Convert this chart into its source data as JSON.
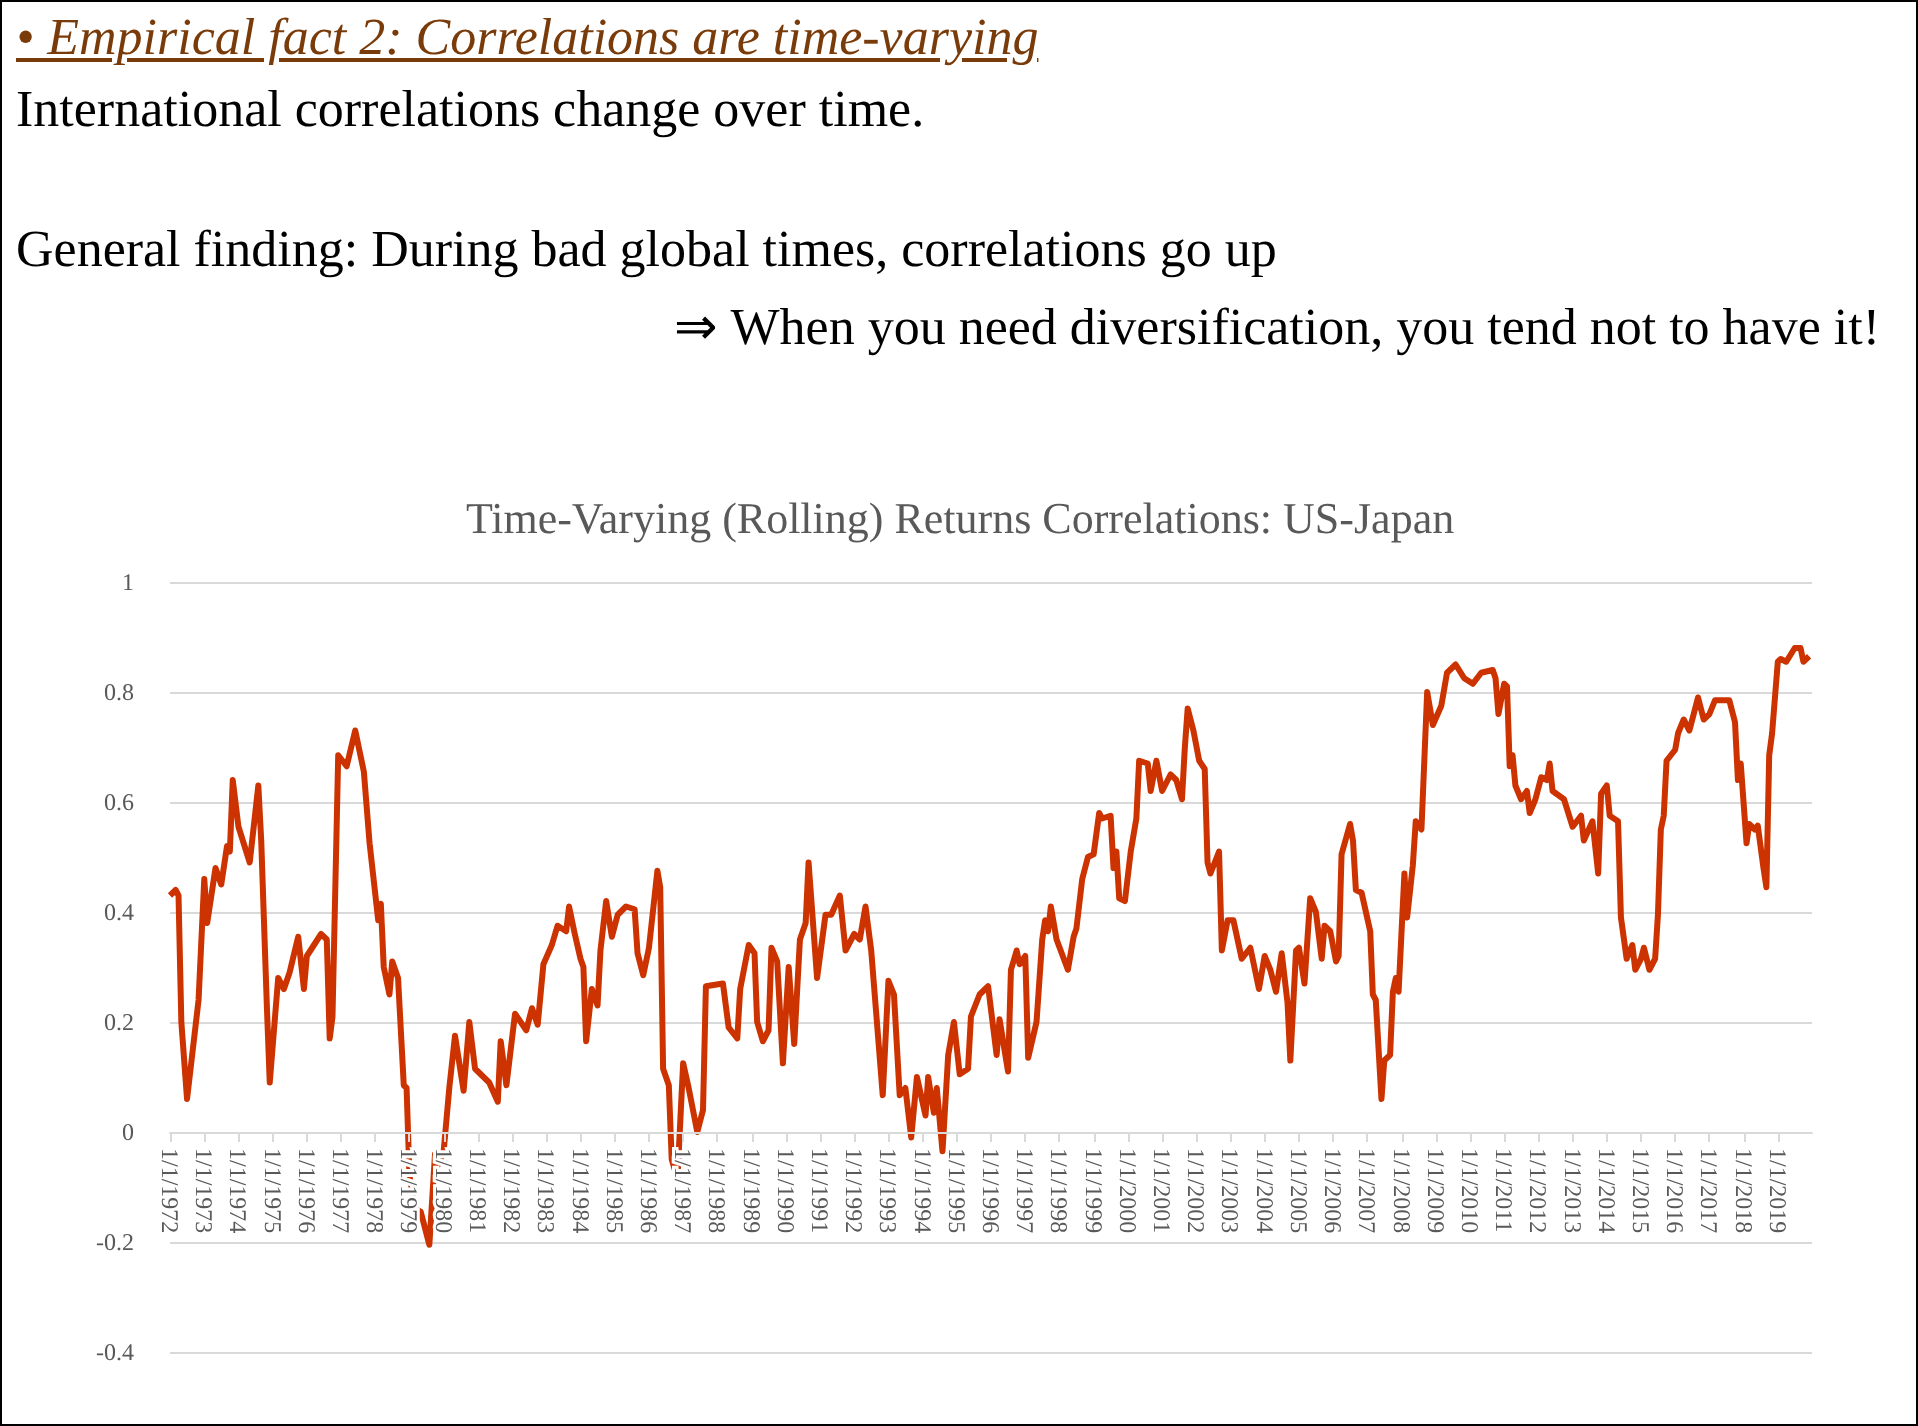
{
  "chart_data": {
    "type": "line",
    "title": "Time-Varying (Rolling) Returns Correlations: US-Japan",
    "annotations": [
      "• Empirical fact 2: Correlations are time-varying",
      "International correlations change over time.",
      "General finding: During bad global times, correlations go up",
      "⇒ When you need diversification, you tend not to have it!"
    ],
    "x": [
      "1972-01",
      "1972-03",
      "1972-04",
      "1972-05",
      "1972-07",
      "1972-11",
      "1973-01",
      "1973-02",
      "1973-05",
      "1973-07",
      "1973-09",
      "1973-10",
      "1973-11",
      "1974-01",
      "1974-05",
      "1974-08",
      "1974-09",
      "1974-11",
      "1974-12",
      "1975-03",
      "1975-05",
      "1975-07",
      "1975-10",
      "1975-12",
      "1976-01",
      "1976-06",
      "1976-08",
      "1976-09",
      "1976-10",
      "1976-12",
      "1977-03",
      "1977-06",
      "1977-09",
      "1977-11",
      "1978-02",
      "1978-03",
      "1978-04",
      "1978-06",
      "1978-07",
      "1978-09",
      "1978-11",
      "1978-12",
      "1979-01",
      "1979-03",
      "1979-05",
      "1979-08",
      "1979-10",
      "1979-11",
      "1980-01",
      "1980-03",
      "1980-05",
      "1980-08",
      "1980-10",
      "1980-12",
      "1981-05",
      "1981-08",
      "1981-09",
      "1981-11",
      "1982-02",
      "1982-06",
      "1982-08",
      "1982-10",
      "1982-12",
      "1983-03",
      "1983-05",
      "1983-08",
      "1983-09",
      "1983-11",
      "1984-01",
      "1984-02",
      "1984-03",
      "1984-05",
      "1984-07",
      "1984-08",
      "1984-10",
      "1984-12",
      "1985-02",
      "1985-05",
      "1985-08",
      "1985-09",
      "1985-11",
      "1986-01",
      "1986-04",
      "1986-05",
      "1986-06",
      "1986-08",
      "1986-09",
      "1986-11",
      "1987-01",
      "1987-03",
      "1987-06",
      "1987-08",
      "1987-09",
      "1988-03",
      "1988-05",
      "1988-08",
      "1988-09",
      "1988-12",
      "1989-02",
      "1989-03",
      "1989-05",
      "1989-07",
      "1989-08",
      "1989-10",
      "1989-12",
      "1990-02",
      "1990-04",
      "1990-06",
      "1990-08",
      "1990-09",
      "1990-12",
      "1991-03",
      "1991-05",
      "1991-08",
      "1991-10",
      "1992-01",
      "1992-03",
      "1992-05",
      "1992-07",
      "1992-11",
      "1993-01",
      "1993-03",
      "1993-05",
      "1993-07",
      "1993-09",
      "1993-11",
      "1994-02",
      "1994-03",
      "1994-05",
      "1994-06",
      "1994-08",
      "1994-10",
      "1994-12",
      "1995-02",
      "1995-05",
      "1995-06",
      "1995-09",
      "1995-12",
      "1996-03",
      "1996-04",
      "1996-07",
      "1996-08",
      "1996-10",
      "1996-11",
      "1997-01",
      "1997-02",
      "1997-05",
      "1997-07",
      "1997-08",
      "1997-09",
      "1997-10",
      "1997-12",
      "1998-04",
      "1998-06",
      "1998-07",
      "1998-09",
      "1998-11",
      "1999-01",
      "1999-03",
      "1999-04",
      "1999-07",
      "1999-08",
      "1999-09",
      "1999-10",
      "1999-12",
      "2000-02",
      "2000-04",
      "2000-05",
      "2000-08",
      "2000-09",
      "2000-11",
      "2001-01",
      "2001-04",
      "2001-06",
      "2001-08",
      "2001-09",
      "2001-10",
      "2001-12",
      "2002-02",
      "2002-04",
      "2002-05",
      "2002-06",
      "2002-09",
      "2002-10",
      "2002-12",
      "2003-02",
      "2003-05",
      "2003-08",
      "2003-11",
      "2004-01",
      "2004-03",
      "2004-05",
      "2004-07",
      "2004-09",
      "2004-10",
      "2004-12",
      "2005-01",
      "2005-03",
      "2005-05",
      "2005-07",
      "2005-09",
      "2005-10",
      "2005-12",
      "2006-02",
      "2006-03",
      "2006-04",
      "2006-07",
      "2006-08",
      "2006-09",
      "2006-11",
      "2007-02",
      "2007-03",
      "2007-04",
      "2007-06",
      "2007-07",
      "2007-09",
      "2007-10",
      "2007-11",
      "2007-12",
      "2008-02",
      "2008-03",
      "2008-05",
      "2008-06",
      "2008-08",
      "2008-10",
      "2008-12",
      "2009-03",
      "2009-05",
      "2009-08",
      "2009-11",
      "2010-02",
      "2010-05",
      "2010-09",
      "2010-10",
      "2010-11",
      "2011-01",
      "2011-02",
      "2011-03",
      "2011-04",
      "2011-05",
      "2011-07",
      "2011-09",
      "2011-10",
      "2011-12",
      "2012-02",
      "2012-04",
      "2012-05",
      "2012-06",
      "2012-10",
      "2013-01",
      "2013-04",
      "2013-05",
      "2013-08",
      "2013-10",
      "2013-11",
      "2014-01",
      "2014-02",
      "2014-05",
      "2014-06",
      "2014-08",
      "2014-10",
      "2014-11",
      "2015-01",
      "2015-02",
      "2015-04",
      "2015-06",
      "2015-07",
      "2015-08",
      "2015-09",
      "2015-10",
      "2016-01",
      "2016-02",
      "2016-04",
      "2016-06",
      "2016-09",
      "2016-11",
      "2017-01",
      "2017-03",
      "2017-06",
      "2017-08",
      "2017-10",
      "2017-11",
      "2017-12",
      "2018-02",
      "2018-03",
      "2018-05",
      "2018-06",
      "2018-08",
      "2018-09",
      "2018-10",
      "2018-11",
      "2019-01",
      "2019-02",
      "2019-04",
      "2019-07",
      "2019-09",
      "2019-10",
      "2019-12"
    ],
    "series": [
      {
        "color": "#cc3300",
        "values": [
          0.43,
          0.44,
          0.43,
          0.2,
          0.06,
          0.24,
          0.46,
          0.38,
          0.48,
          0.45,
          0.52,
          0.51,
          0.64,
          0.555,
          0.49,
          0.63,
          0.53,
          0.225,
          0.09,
          0.28,
          0.26,
          0.29,
          0.355,
          0.26,
          0.32,
          0.36,
          0.35,
          0.17,
          0.21,
          0.685,
          0.665,
          0.73,
          0.655,
          0.525,
          0.385,
          0.415,
          0.3,
          0.25,
          0.31,
          0.28,
          0.085,
          0.08,
          -0.08,
          -0.14,
          -0.145,
          -0.205,
          -0.04,
          -0.06,
          -0.035,
          0.08,
          0.175,
          0.075,
          0.2,
          0.115,
          0.09,
          0.055,
          0.165,
          0.085,
          0.215,
          0.185,
          0.225,
          0.195,
          0.305,
          0.34,
          0.375,
          0.365,
          0.41,
          0.36,
          0.315,
          0.3,
          0.165,
          0.26,
          0.23,
          0.33,
          0.42,
          0.355,
          0.395,
          0.41,
          0.405,
          0.325,
          0.285,
          0.335,
          0.475,
          0.445,
          0.115,
          0.085,
          -0.05,
          -0.085,
          0.125,
          0.08,
          0.0,
          0.04,
          0.265,
          0.27,
          0.19,
          0.17,
          0.26,
          0.34,
          0.325,
          0.2,
          0.165,
          0.185,
          0.335,
          0.31,
          0.125,
          0.3,
          0.16,
          0.35,
          0.38,
          0.49,
          0.28,
          0.395,
          0.395,
          0.43,
          0.33,
          0.36,
          0.35,
          0.41,
          0.33,
          0.067,
          0.275,
          0.25,
          0.067,
          0.08,
          -0.01,
          0.1,
          0.03,
          0.1,
          0.035,
          0.08,
          -0.035,
          0.14,
          0.2,
          0.105,
          0.115,
          0.21,
          0.25,
          0.265,
          0.14,
          0.205,
          0.11,
          0.295,
          0.33,
          0.305,
          0.32,
          0.135,
          0.2,
          0.35,
          0.385,
          0.365,
          0.41,
          0.35,
          0.295,
          0.355,
          0.37,
          0.46,
          0.5,
          0.505,
          0.58,
          0.57,
          0.575,
          0.48,
          0.51,
          0.425,
          0.42,
          0.51,
          0.57,
          0.675,
          0.67,
          0.62,
          0.675,
          0.62,
          0.65,
          0.64,
          0.605,
          0.7,
          0.77,
          0.73,
          0.675,
          0.66,
          0.49,
          0.47,
          0.51,
          0.33,
          0.385,
          0.385,
          0.315,
          0.335,
          0.26,
          0.32,
          0.295,
          0.255,
          0.325,
          0.235,
          0.13,
          0.33,
          0.335,
          0.27,
          0.425,
          0.4,
          0.315,
          0.375,
          0.365,
          0.31,
          0.32,
          0.505,
          0.56,
          0.53,
          0.44,
          0.435,
          0.365,
          0.25,
          0.24,
          0.06,
          0.13,
          0.14,
          0.255,
          0.28,
          0.255,
          0.47,
          0.39,
          0.485,
          0.565,
          0.55,
          0.8,
          0.74,
          0.775,
          0.835,
          0.85,
          0.825,
          0.815,
          0.835,
          0.84,
          0.825,
          0.76,
          0.815,
          0.81,
          0.665,
          0.685,
          0.63,
          0.605,
          0.62,
          0.58,
          0.605,
          0.645,
          0.64,
          0.67,
          0.62,
          0.605,
          0.555,
          0.575,
          0.53,
          0.565,
          0.47,
          0.615,
          0.63,
          0.575,
          0.565,
          0.39,
          0.315,
          0.34,
          0.295,
          0.315,
          0.335,
          0.295,
          0.315,
          0.395,
          0.55,
          0.575,
          0.675,
          0.695,
          0.725,
          0.75,
          0.73,
          0.79,
          0.75,
          0.76,
          0.785,
          0.785,
          0.785,
          0.745,
          0.64,
          0.67,
          0.525,
          0.56,
          0.55,
          0.557,
          0.48,
          0.445,
          0.685,
          0.725,
          0.855,
          0.86,
          0.855,
          0.88,
          0.88,
          0.855,
          0.865
        ]
      }
    ],
    "xlim": [
      "1972-01",
      "2020-01"
    ],
    "xticks": [
      {
        "value": "1972-01",
        "label": "1/1/1972"
      },
      {
        "value": "1973-01",
        "label": "1/1/1973"
      },
      {
        "value": "1974-01",
        "label": "1/1/1974"
      },
      {
        "value": "1975-01",
        "label": "1/1/1975"
      },
      {
        "value": "1976-01",
        "label": "1/1/1976"
      },
      {
        "value": "1977-01",
        "label": "1/1/1977"
      },
      {
        "value": "1978-01",
        "label": "1/1/1978"
      },
      {
        "value": "1979-01",
        "label": "1/1/1979"
      },
      {
        "value": "1980-01",
        "label": "1/1/1980"
      },
      {
        "value": "1981-01",
        "label": "1/1/1981"
      },
      {
        "value": "1982-01",
        "label": "1/1/1982"
      },
      {
        "value": "1983-01",
        "label": "1/1/1983"
      },
      {
        "value": "1984-01",
        "label": "1/1/1984"
      },
      {
        "value": "1985-01",
        "label": "1/1/1985"
      },
      {
        "value": "1986-01",
        "label": "1/1/1986"
      },
      {
        "value": "1987-01",
        "label": "1/1/1987"
      },
      {
        "value": "1988-01",
        "label": "1/1/1988"
      },
      {
        "value": "1989-01",
        "label": "1/1/1989"
      },
      {
        "value": "1990-01",
        "label": "1/1/1990"
      },
      {
        "value": "1991-01",
        "label": "1/1/1991"
      },
      {
        "value": "1992-01",
        "label": "1/1/1992"
      },
      {
        "value": "1993-01",
        "label": "1/1/1993"
      },
      {
        "value": "1994-01",
        "label": "1/1/1994"
      },
      {
        "value": "1995-01",
        "label": "1/1/1995"
      },
      {
        "value": "1996-01",
        "label": "1/1/1996"
      },
      {
        "value": "1997-01",
        "label": "1/1/1997"
      },
      {
        "value": "1998-01",
        "label": "1/1/1998"
      },
      {
        "value": "1999-01",
        "label": "1/1/1999"
      },
      {
        "value": "2000-01",
        "label": "1/1/2000"
      },
      {
        "value": "2001-01",
        "label": "1/1/2001"
      },
      {
        "value": "2002-01",
        "label": "1/1/2002"
      },
      {
        "value": "2003-01",
        "label": "1/1/2003"
      },
      {
        "value": "2004-01",
        "label": "1/1/2004"
      },
      {
        "value": "2005-01",
        "label": "1/1/2005"
      },
      {
        "value": "2006-01",
        "label": "1/1/2006"
      },
      {
        "value": "2007-01",
        "label": "1/1/2007"
      },
      {
        "value": "2008-01",
        "label": "1/1/2008"
      },
      {
        "value": "2009-01",
        "label": "1/1/2009"
      },
      {
        "value": "2010-01",
        "label": "1/1/2010"
      },
      {
        "value": "2011-01",
        "label": "1/1/2011"
      },
      {
        "value": "2012-01",
        "label": "1/1/2012"
      },
      {
        "value": "2013-01",
        "label": "1/1/2013"
      },
      {
        "value": "2014-01",
        "label": "1/1/2014"
      },
      {
        "value": "2015-01",
        "label": "1/1/2015"
      },
      {
        "value": "2016-01",
        "label": "1/1/2016"
      },
      {
        "value": "2017-01",
        "label": "1/1/2017"
      },
      {
        "value": "2018-01",
        "label": "1/1/2018"
      },
      {
        "value": "2019-01",
        "label": "1/1/2019"
      }
    ],
    "ylim": [
      -0.4,
      1
    ],
    "yticks": [
      -0.4,
      -0.2,
      0,
      0.2,
      0.4,
      0.6,
      0.8,
      1
    ],
    "grid": "y",
    "marker": "none",
    "line_style": "solid"
  }
}
